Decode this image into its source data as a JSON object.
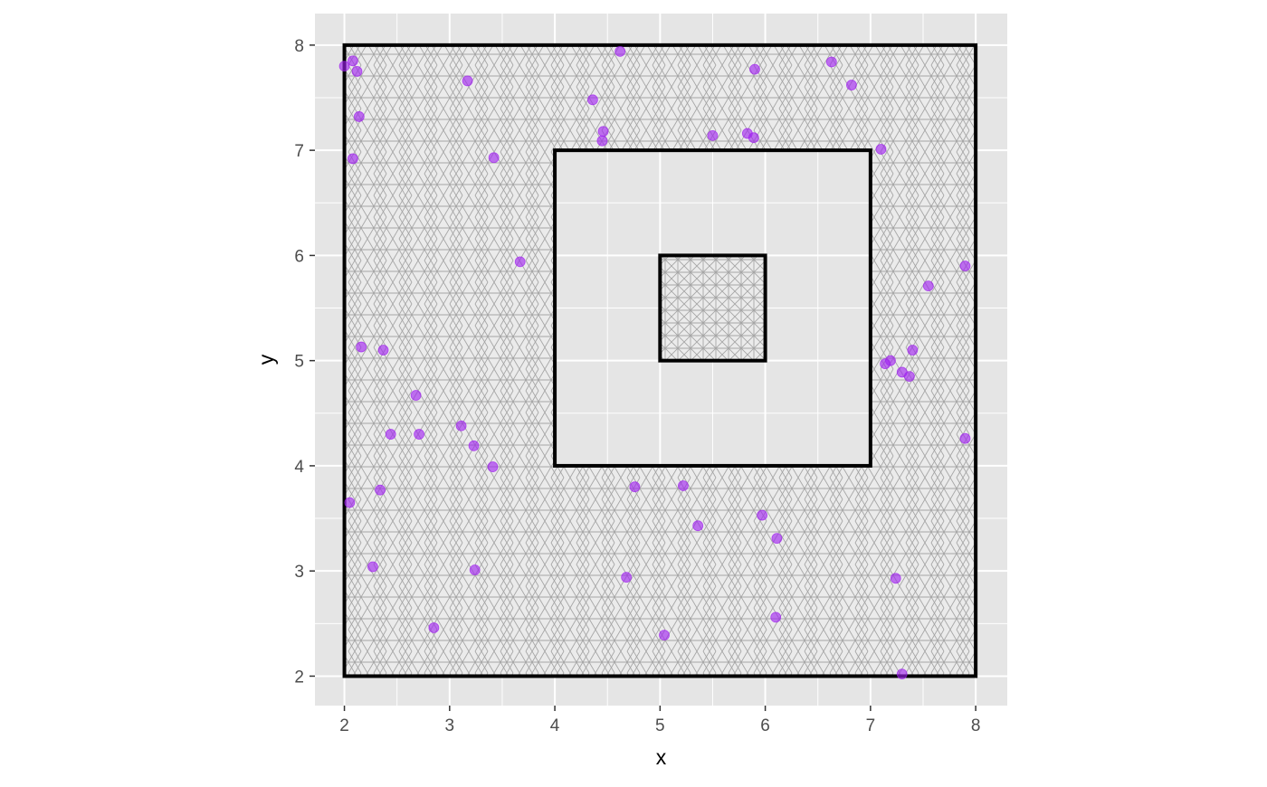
{
  "chart_data": {
    "type": "scatter",
    "title": "",
    "xlabel": "x",
    "ylabel": "y",
    "xlim": [
      1.72,
      8.3
    ],
    "ylim": [
      1.72,
      8.3
    ],
    "x_ticks": [
      2,
      3,
      4,
      5,
      6,
      7,
      8
    ],
    "y_ticks": [
      2,
      3,
      4,
      5,
      6,
      7,
      8
    ],
    "x_tick_labels": [
      "2",
      "3",
      "4",
      "5",
      "6",
      "7",
      "8"
    ],
    "y_tick_labels": [
      "2",
      "3",
      "4",
      "5",
      "6",
      "7",
      "8"
    ],
    "grid": true,
    "legend": "none",
    "colors": {
      "panel_background": "#e5e5e5",
      "grid": "#ffffff",
      "mesh_fill": "#ebebeb",
      "mesh_edge": "#a6a6a6",
      "boundary": "#000000",
      "points": "#a020f0"
    },
    "boundaries": [
      {
        "name": "outer",
        "xmin": 2,
        "xmax": 8,
        "ymin": 2,
        "ymax": 8
      },
      {
        "name": "hole",
        "xmin": 4,
        "xmax": 7,
        "ymin": 4,
        "ymax": 7
      },
      {
        "name": "inner",
        "xmin": 5,
        "xmax": 6,
        "ymin": 5,
        "ymax": 6
      }
    ],
    "points": [
      {
        "x": 2.0,
        "y": 7.8
      },
      {
        "x": 2.08,
        "y": 7.85
      },
      {
        "x": 2.12,
        "y": 7.75
      },
      {
        "x": 2.14,
        "y": 7.32
      },
      {
        "x": 2.08,
        "y": 6.92
      },
      {
        "x": 3.17,
        "y": 7.66
      },
      {
        "x": 3.42,
        "y": 6.93
      },
      {
        "x": 3.67,
        "y": 5.94
      },
      {
        "x": 4.36,
        "y": 7.48
      },
      {
        "x": 4.46,
        "y": 7.18
      },
      {
        "x": 4.45,
        "y": 7.09
      },
      {
        "x": 4.62,
        "y": 7.94
      },
      {
        "x": 5.5,
        "y": 7.14
      },
      {
        "x": 5.83,
        "y": 7.16
      },
      {
        "x": 5.89,
        "y": 7.12
      },
      {
        "x": 5.9,
        "y": 7.77
      },
      {
        "x": 6.63,
        "y": 7.84
      },
      {
        "x": 6.82,
        "y": 7.62
      },
      {
        "x": 7.1,
        "y": 7.01
      },
      {
        "x": 7.9,
        "y": 5.9
      },
      {
        "x": 7.55,
        "y": 5.71
      },
      {
        "x": 7.4,
        "y": 5.1
      },
      {
        "x": 7.19,
        "y": 5.0
      },
      {
        "x": 7.14,
        "y": 4.97
      },
      {
        "x": 7.3,
        "y": 4.89
      },
      {
        "x": 7.37,
        "y": 4.85
      },
      {
        "x": 7.9,
        "y": 4.26
      },
      {
        "x": 2.16,
        "y": 5.13
      },
      {
        "x": 2.37,
        "y": 5.1
      },
      {
        "x": 2.68,
        "y": 4.67
      },
      {
        "x": 2.44,
        "y": 4.3
      },
      {
        "x": 2.71,
        "y": 4.3
      },
      {
        "x": 3.11,
        "y": 4.38
      },
      {
        "x": 3.23,
        "y": 4.19
      },
      {
        "x": 3.41,
        "y": 3.99
      },
      {
        "x": 2.05,
        "y": 3.65
      },
      {
        "x": 2.34,
        "y": 3.77
      },
      {
        "x": 2.27,
        "y": 3.04
      },
      {
        "x": 3.24,
        "y": 3.01
      },
      {
        "x": 2.85,
        "y": 2.46
      },
      {
        "x": 4.76,
        "y": 3.8
      },
      {
        "x": 5.22,
        "y": 3.81
      },
      {
        "x": 5.36,
        "y": 3.43
      },
      {
        "x": 5.97,
        "y": 3.53
      },
      {
        "x": 6.11,
        "y": 3.31
      },
      {
        "x": 4.68,
        "y": 2.94
      },
      {
        "x": 5.04,
        "y": 2.39
      },
      {
        "x": 6.1,
        "y": 2.56
      },
      {
        "x": 7.24,
        "y": 2.93
      },
      {
        "x": 7.3,
        "y": 2.02
      }
    ]
  }
}
